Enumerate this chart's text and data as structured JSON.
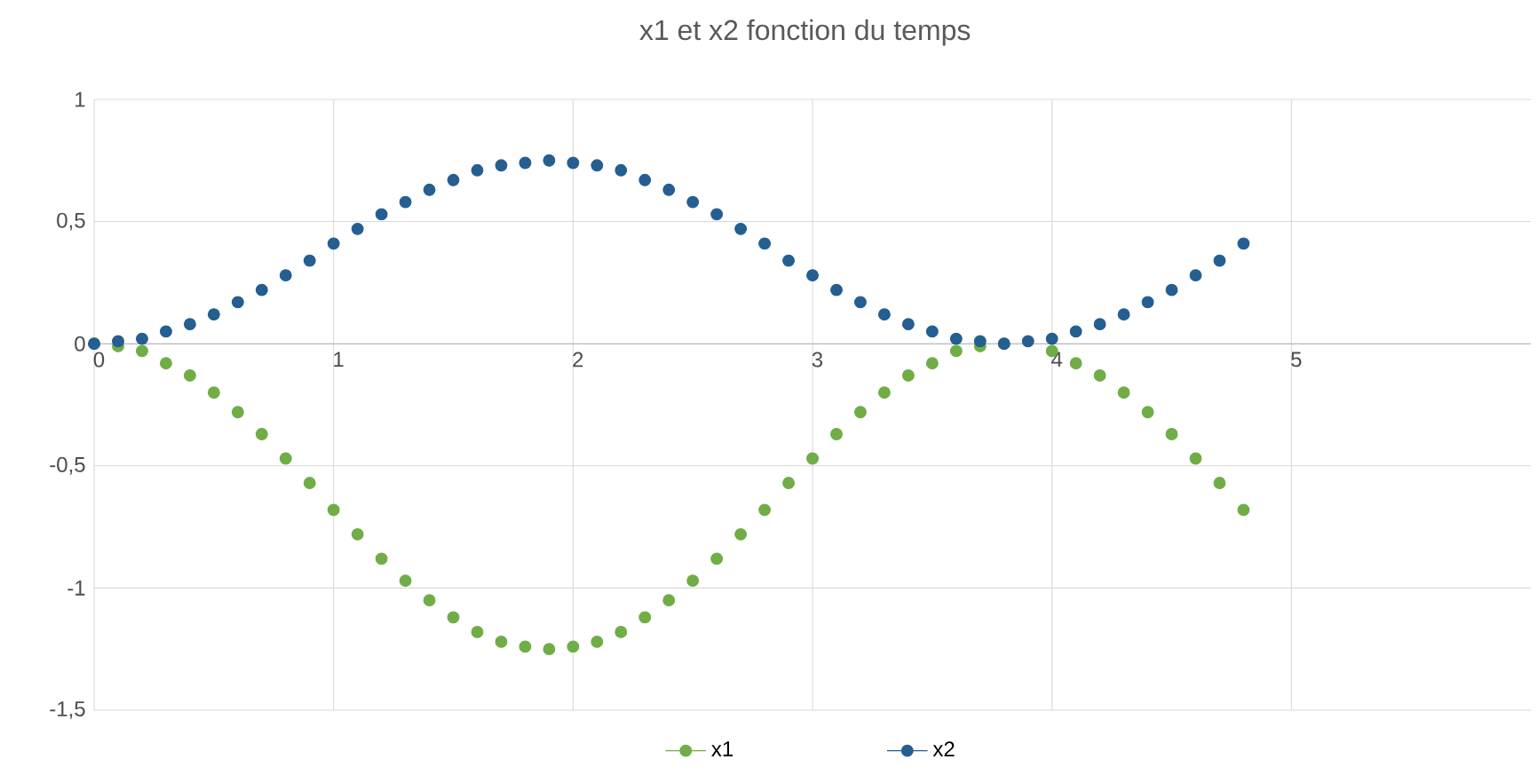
{
  "chart_data": {
    "type": "scatter",
    "title": "x1 et x2 fonction du temps",
    "x": [
      0,
      0.1,
      0.2,
      0.3,
      0.4,
      0.5,
      0.6,
      0.7,
      0.8,
      0.9,
      1,
      1.1,
      1.2,
      1.3,
      1.4,
      1.5,
      1.6,
      1.7,
      1.8,
      1.9,
      2,
      2.1,
      2.2,
      2.3,
      2.4,
      2.5,
      2.6,
      2.7,
      2.8,
      2.9,
      3,
      3.1,
      3.2,
      3.3,
      3.4,
      3.5,
      3.6,
      3.7,
      3.8,
      3.9,
      4,
      4.1,
      4.2,
      4.3,
      4.4,
      4.5,
      4.6,
      4.7,
      4.8
    ],
    "series": [
      {
        "name": "x1",
        "color": "#70ad47",
        "values": [
          0,
          -0.01,
          -0.03,
          -0.08,
          -0.13,
          -0.2,
          -0.28,
          -0.37,
          -0.47,
          -0.57,
          -0.68,
          -0.78,
          -0.88,
          -0.97,
          -1.05,
          -1.12,
          -1.18,
          -1.22,
          -1.24,
          -1.25,
          -1.24,
          -1.22,
          -1.18,
          -1.12,
          -1.05,
          -0.97,
          -0.88,
          -0.78,
          -0.68,
          -0.57,
          -0.47,
          -0.37,
          -0.28,
          -0.2,
          -0.13,
          -0.08,
          -0.03,
          -0.01,
          0,
          null,
          -0.03,
          -0.08,
          -0.13,
          -0.2,
          -0.28,
          -0.37,
          -0.47,
          -0.57,
          -0.68
        ]
      },
      {
        "name": "x2",
        "color": "#255e91",
        "values": [
          0,
          0.01,
          0.02,
          0.05,
          0.08,
          0.12,
          0.17,
          0.22,
          0.28,
          0.34,
          0.41,
          0.47,
          0.53,
          0.58,
          0.63,
          0.67,
          0.71,
          0.73,
          0.74,
          0.75,
          0.74,
          0.73,
          0.71,
          0.67,
          0.63,
          0.58,
          0.53,
          0.47,
          0.41,
          0.34,
          0.28,
          0.22,
          0.17,
          0.12,
          0.08,
          0.05,
          0.02,
          0.01,
          0,
          0.01,
          0.02,
          0.05,
          0.08,
          0.12,
          0.17,
          0.22,
          0.28,
          0.34,
          0.41
        ]
      }
    ],
    "xlim": [
      0,
      6
    ],
    "xticks": [
      0,
      1,
      2,
      3,
      4,
      5
    ],
    "ylim": [
      -1.5,
      1
    ],
    "yticks": [
      {
        "value": -1.5,
        "label": "-1,5"
      },
      {
        "value": -1,
        "label": "-1"
      },
      {
        "value": -0.5,
        "label": "-0,5"
      },
      0,
      {
        "value": 0.5,
        "label": "0,5"
      },
      1
    ],
    "grid": true,
    "legend": "bottom",
    "marker": "circle"
  }
}
